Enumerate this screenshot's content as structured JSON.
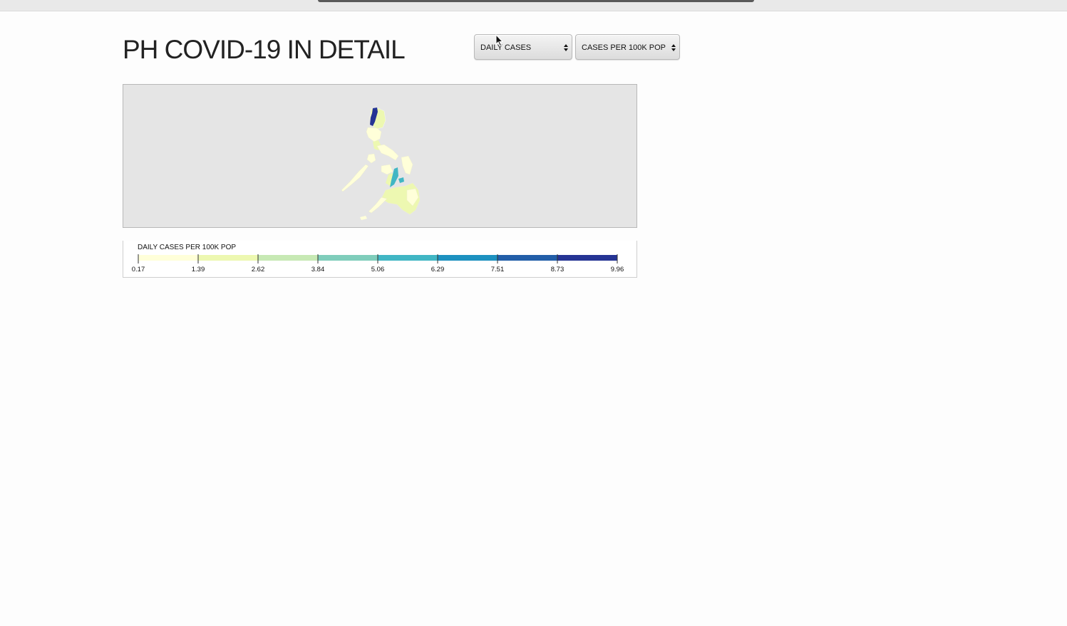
{
  "page": {
    "title": "PH COVID-19 IN DETAIL"
  },
  "controls": {
    "metric_select": {
      "value": "DAILY CASES"
    },
    "normalization_select": {
      "value": "CASES PER 100K POP"
    }
  },
  "map": {
    "background_color": "#e5e5e5",
    "highlight_regions": [
      {
        "region": "northwest Luzon",
        "color": "#253494"
      },
      {
        "region": "central Visayas",
        "color": "#41b6c4"
      }
    ]
  },
  "legend": {
    "title": "DAILY CASES PER 100K POP",
    "ticks": [
      "0.17",
      "1.39",
      "2.62",
      "3.84",
      "5.06",
      "6.29",
      "7.51",
      "8.73",
      "9.96"
    ],
    "colors": [
      "#ffffd9",
      "#edf8b1",
      "#c7e9b4",
      "#7fcdbb",
      "#41b6c4",
      "#1d91c0",
      "#225ea8",
      "#253494"
    ]
  },
  "icons": {
    "select_arrows": "updown-arrows-icon",
    "cursor": "mouse-cursor-icon"
  }
}
